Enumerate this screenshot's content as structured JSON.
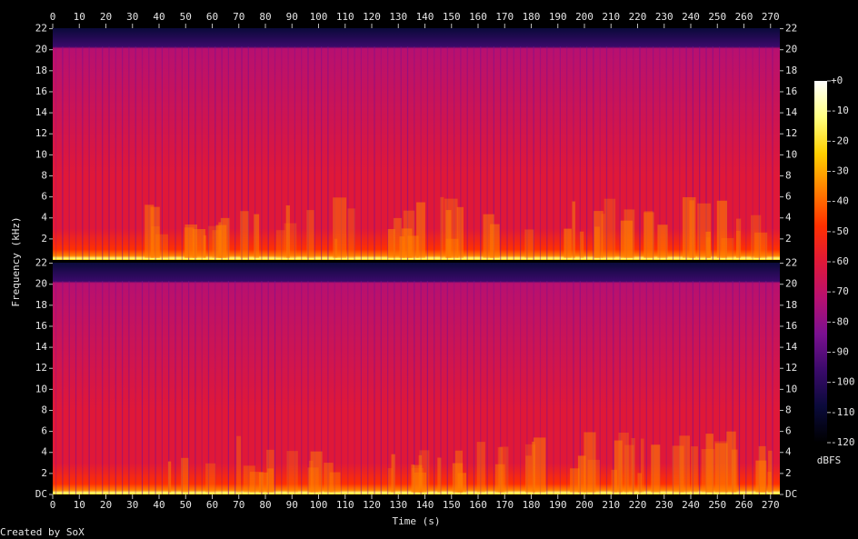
{
  "chart_data": {
    "type": "spectrogram",
    "xlabel": "Time (s)",
    "ylabel": "Frequency (kHz)",
    "footer": "Created by SoX",
    "xlim": [
      0,
      273.5
    ],
    "xticks": [
      0,
      10,
      20,
      30,
      40,
      50,
      60,
      70,
      80,
      90,
      100,
      110,
      120,
      130,
      140,
      150,
      160,
      170,
      180,
      190,
      200,
      210,
      220,
      230,
      240,
      250,
      260,
      270
    ],
    "panels": [
      {
        "ylim": [
          0,
          22.05
        ],
        "yticks": [
          2,
          4,
          6,
          8,
          10,
          12,
          14,
          16,
          18,
          20,
          22
        ]
      },
      {
        "ylim": [
          0,
          22.05
        ],
        "yticks": [
          {
            "value": 0,
            "label": "DC"
          },
          2,
          4,
          6,
          8,
          10,
          12,
          14,
          16,
          18,
          20,
          22
        ]
      }
    ],
    "colorbar": {
      "label": "dBFS",
      "lim": [
        -120,
        0
      ],
      "ticks": [
        {
          "value": 0,
          "label": "+0"
        },
        -10,
        -20,
        -30,
        -40,
        -50,
        -60,
        -70,
        -80,
        -90,
        -100,
        -110,
        -120
      ],
      "colors": [
        "#000000",
        "#0a0a3a",
        "#3a0a6a",
        "#7a1090",
        "#b81070",
        "#e01838",
        "#ff3000",
        "#ff8000",
        "#ffd000",
        "#ffff80",
        "#ffffff"
      ]
    }
  }
}
